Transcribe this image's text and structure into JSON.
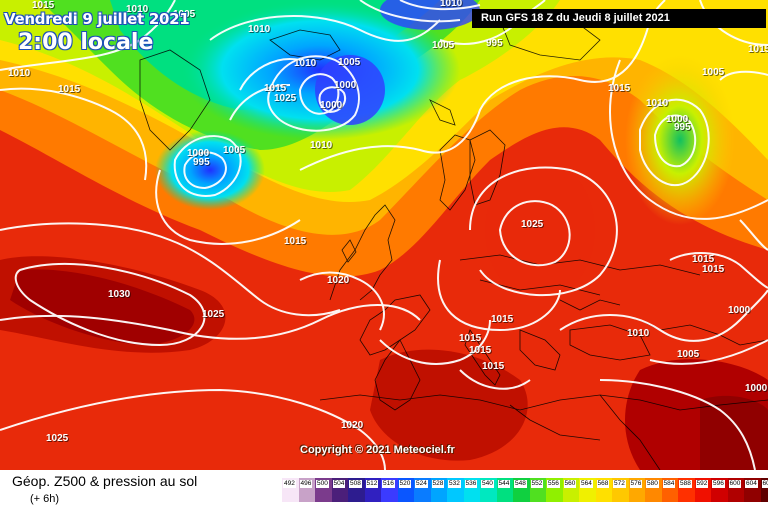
{
  "header": {
    "date_line": "Vendredi 9 juillet 2021",
    "hour_line": "2:00 locale",
    "run_info": "Run GFS 18 Z du Jeudi 8 juillet 2021",
    "copyright": "Copyright © 2021 Meteociel.fr"
  },
  "legend": {
    "title": "Géop. Z500 & pression au sol",
    "subtitle": "(+ 6h)",
    "scale": [
      {
        "value": "492",
        "color": "#f7e6f7"
      },
      {
        "value": "496",
        "color": "#c8a2c8"
      },
      {
        "value": "500",
        "color": "#7b3b8c"
      },
      {
        "value": "504",
        "color": "#4b1f7a"
      },
      {
        "value": "508",
        "color": "#2d1c8f"
      },
      {
        "value": "512",
        "color": "#3020c0"
      },
      {
        "value": "516",
        "color": "#3b3bff"
      },
      {
        "value": "520",
        "color": "#0a56ff"
      },
      {
        "value": "524",
        "color": "#0a7cff"
      },
      {
        "value": "528",
        "color": "#00a5ff"
      },
      {
        "value": "532",
        "color": "#00c8ff"
      },
      {
        "value": "536",
        "color": "#00e0f0"
      },
      {
        "value": "540",
        "color": "#00e8c0"
      },
      {
        "value": "544",
        "color": "#00e080"
      },
      {
        "value": "548",
        "color": "#10d040"
      },
      {
        "value": "552",
        "color": "#50e020"
      },
      {
        "value": "556",
        "color": "#90f000"
      },
      {
        "value": "560",
        "color": "#c8f000"
      },
      {
        "value": "564",
        "color": "#f0f000"
      },
      {
        "value": "568",
        "color": "#ffe000"
      },
      {
        "value": "572",
        "color": "#ffc800"
      },
      {
        "value": "576",
        "color": "#ffa800"
      },
      {
        "value": "580",
        "color": "#ff8800"
      },
      {
        "value": "584",
        "color": "#ff6000"
      },
      {
        "value": "588",
        "color": "#ff3000"
      },
      {
        "value": "592",
        "color": "#f01000"
      },
      {
        "value": "596",
        "color": "#d00000"
      },
      {
        "value": "600",
        "color": "#b00000"
      },
      {
        "value": "604",
        "color": "#900000"
      },
      {
        "value": "608",
        "color": "#600000"
      },
      {
        "value": "612",
        "color": "#300000"
      }
    ]
  },
  "isobar_labels": [
    {
      "text": "1015"
    },
    {
      "text": "1010"
    },
    {
      "text": "1010"
    },
    {
      "text": "1005"
    },
    {
      "text": "1010"
    },
    {
      "text": "1015"
    },
    {
      "text": "1010"
    },
    {
      "text": "1005"
    },
    {
      "text": "1000"
    },
    {
      "text": "1015"
    },
    {
      "text": "1025"
    },
    {
      "text": "1010"
    },
    {
      "text": "1000"
    },
    {
      "text": "995"
    },
    {
      "text": "1005"
    },
    {
      "text": "1000"
    },
    {
      "text": "1010"
    },
    {
      "text": "1005"
    },
    {
      "text": "995"
    },
    {
      "text": "1005"
    },
    {
      "text": "1015"
    },
    {
      "text": "1010"
    },
    {
      "text": "1000"
    },
    {
      "text": "995"
    },
    {
      "text": "1015"
    },
    {
      "text": "1025"
    },
    {
      "text": "1015"
    },
    {
      "text": "1020"
    },
    {
      "text": "1030"
    },
    {
      "text": "1025"
    },
    {
      "text": "1015"
    },
    {
      "text": "1015"
    },
    {
      "text": "1015"
    },
    {
      "text": "1015"
    },
    {
      "text": "1010"
    },
    {
      "text": "1015"
    },
    {
      "text": "1015"
    },
    {
      "text": "1000"
    },
    {
      "text": "1005"
    },
    {
      "text": "1000"
    },
    {
      "text": "1020"
    },
    {
      "text": "1025"
    }
  ]
}
